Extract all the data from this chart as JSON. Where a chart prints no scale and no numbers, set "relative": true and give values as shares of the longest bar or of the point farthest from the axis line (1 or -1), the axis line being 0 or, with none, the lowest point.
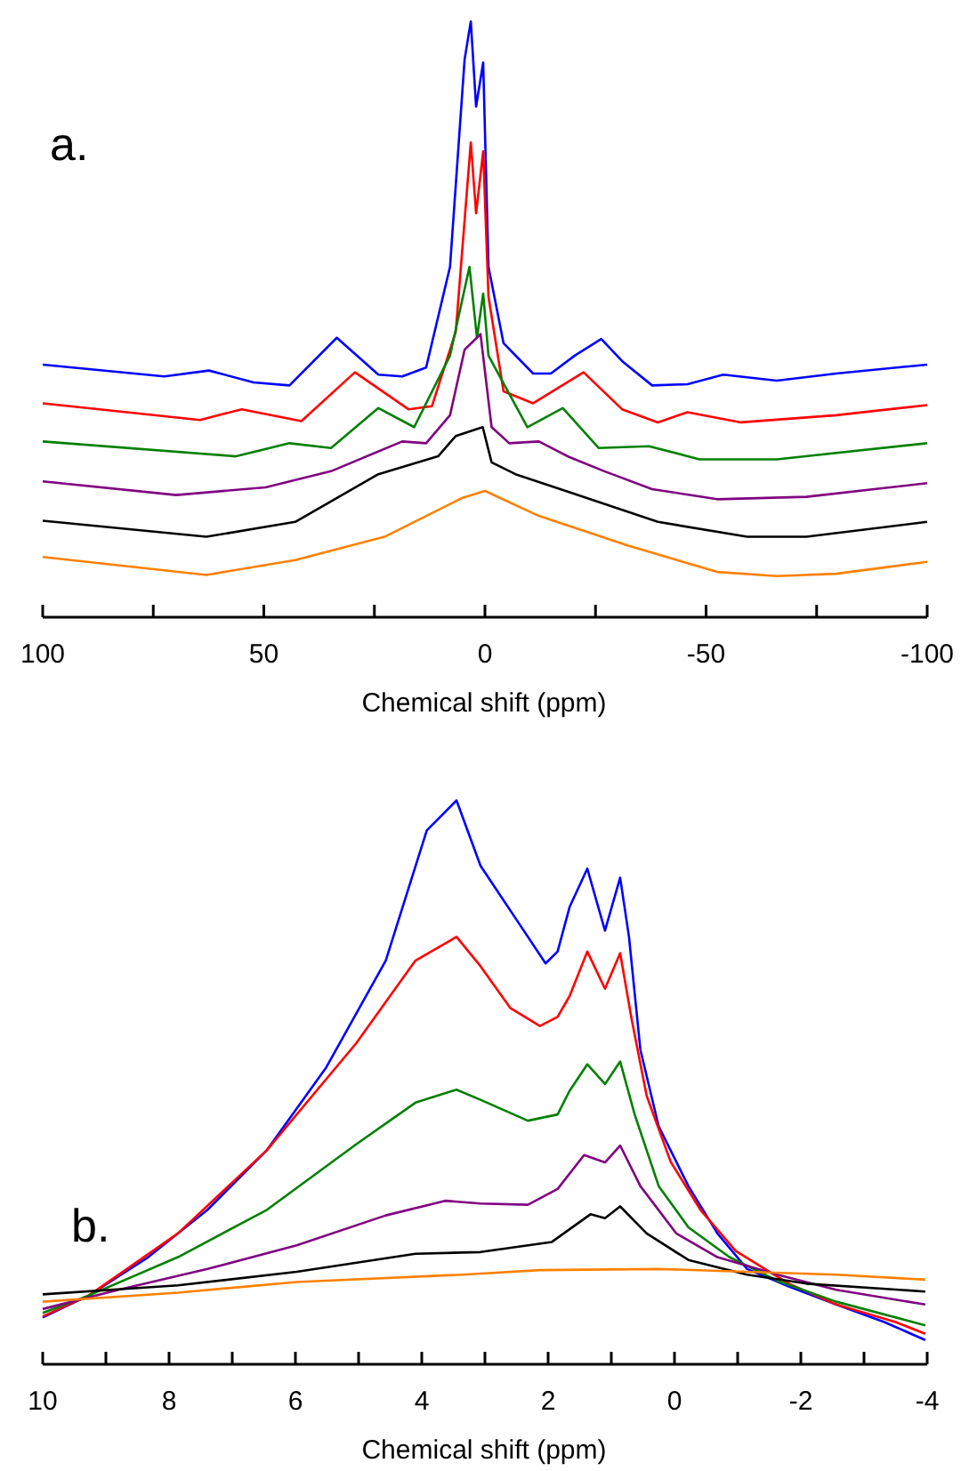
{
  "chart_data": [
    {
      "type": "line",
      "relative": true,
      "xlabel": "Chemical shift (ppm)",
      "annotations": [
        "a."
      ],
      "xlim": [
        100,
        -100
      ],
      "xticks": [
        100,
        {
          "value": 75,
          "label": null
        },
        50,
        {
          "value": 25,
          "label": null
        },
        0,
        {
          "value": -25,
          "label": null
        },
        -50,
        {
          "value": -75,
          "label": null
        },
        -100
      ],
      "tick_labels": "x",
      "series": [
        {
          "color": "#0000ff",
          "x": [
            100,
            72.5,
            62.4,
            52.3,
            44.2,
            33.5,
            24.1,
            18.7,
            13.3,
            7.9,
            4.6,
            3.2,
            2.0,
            0.4,
            -0.8,
            -4.2,
            -10.9,
            -14.9,
            -20.3,
            -26.3,
            -31.0,
            -37.8,
            -45.8,
            -53.9,
            -66.0,
            -79.4,
            -100
          ],
          "values": [
            0.424,
            0.404,
            0.414,
            0.394,
            0.389,
            0.469,
            0.407,
            0.404,
            0.419,
            0.588,
            0.936,
            1.0,
            0.857,
            0.931,
            0.588,
            0.46,
            0.409,
            0.409,
            0.439,
            0.467,
            0.43,
            0.389,
            0.391,
            0.407,
            0.397,
            0.409,
            0.424
          ]
        },
        {
          "color": "#ff0000",
          "x": [
            100,
            64.4,
            55.0,
            41.5,
            29.4,
            17.3,
            12.0,
            6.6,
            3.2,
            2.0,
            0.4,
            -0.8,
            -4.2,
            -10.9,
            -22.3,
            -31.0,
            -39.1,
            -45.8,
            -57.9,
            -79.4,
            -100
          ],
          "values": [
            0.359,
            0.331,
            0.349,
            0.329,
            0.411,
            0.349,
            0.354,
            0.479,
            0.797,
            0.678,
            0.782,
            0.538,
            0.379,
            0.359,
            0.411,
            0.349,
            0.327,
            0.344,
            0.327,
            0.339,
            0.356
          ]
        },
        {
          "color": "#008000",
          "x": [
            100,
            56.3,
            44.2,
            34.8,
            24.1,
            16.0,
            7.9,
            3.5,
            1.8,
            0.4,
            -0.8,
            -9.6,
            -17.6,
            -25.7,
            -37.1,
            -48.5,
            -66.0,
            -100
          ],
          "values": [
            0.295,
            0.27,
            0.292,
            0.284,
            0.351,
            0.319,
            0.439,
            0.588,
            0.469,
            0.543,
            0.439,
            0.319,
            0.351,
            0.284,
            0.287,
            0.265,
            0.265,
            0.292
          ]
        },
        {
          "color": "#800080",
          "x": [
            100,
            69.8,
            49.6,
            34.8,
            18.7,
            13.3,
            7.9,
            4.6,
            1.0,
            -1.5,
            -5.5,
            -12.2,
            -19.0,
            -27.0,
            -37.8,
            -52.5,
            -72.7,
            -100
          ],
          "values": [
            0.228,
            0.205,
            0.218,
            0.245,
            0.295,
            0.292,
            0.339,
            0.449,
            0.475,
            0.319,
            0.292,
            0.295,
            0.269,
            0.245,
            0.215,
            0.198,
            0.202,
            0.225
          ]
        },
        {
          "color": "#000000",
          "x": [
            100,
            63.0,
            42.9,
            24.1,
            10.6,
            6.6,
            0.5,
            -1.5,
            -6.9,
            -19.0,
            -39.1,
            -59.3,
            -72.7,
            -100
          ],
          "values": [
            0.162,
            0.135,
            0.16,
            0.24,
            0.27,
            0.304,
            0.319,
            0.26,
            0.24,
            0.21,
            0.16,
            0.135,
            0.135,
            0.16
          ]
        },
        {
          "color": "#ff8000",
          "x": [
            100,
            63.0,
            42.9,
            22.7,
            5.2,
            0,
            -12.2,
            -32.4,
            -52.5,
            -66.0,
            -79.4,
            -100
          ],
          "values": [
            0.101,
            0.071,
            0.096,
            0.135,
            0.2,
            0.212,
            0.17,
            0.12,
            0.076,
            0.069,
            0.073,
            0.093
          ]
        }
      ]
    },
    {
      "type": "line",
      "relative": true,
      "xlabel": "Chemical shift (ppm)",
      "annotations": [
        "b."
      ],
      "xlim": [
        10,
        -4
      ],
      "xticks": [
        10,
        {
          "value": 9,
          "label": null
        },
        8,
        {
          "value": 7,
          "label": null
        },
        6,
        {
          "value": 5,
          "label": null
        },
        4,
        {
          "value": 3,
          "label": null
        },
        2,
        {
          "value": 1,
          "label": null
        },
        0,
        {
          "value": -1,
          "label": null
        },
        -2,
        {
          "value": -3,
          "label": null
        },
        -4
      ],
      "tick_labels": "x",
      "series": [
        {
          "color": "#0000ff",
          "x": [
            10,
            9.27,
            8.33,
            7.39,
            6.45,
            5.51,
            4.57,
            3.92,
            3.45,
            3.07,
            2.51,
            2.04,
            1.85,
            1.66,
            1.38,
            1.1,
            0.86,
            0.72,
            0.54,
            0.25,
            -0.22,
            -0.68,
            -1.15,
            -1.81,
            -2.56,
            -3.32,
            -3.97
          ],
          "values": [
            0.083,
            0.122,
            0.19,
            0.274,
            0.38,
            0.527,
            0.716,
            0.947,
            1.0,
            0.884,
            0.79,
            0.711,
            0.732,
            0.811,
            0.879,
            0.769,
            0.863,
            0.758,
            0.558,
            0.422,
            0.316,
            0.232,
            0.169,
            0.138,
            0.106,
            0.075,
            0.043
          ]
        },
        {
          "color": "#ff0000",
          "x": [
            10,
            9.27,
            7.86,
            6.45,
            5.04,
            4.1,
            3.45,
            3.07,
            2.6,
            2.13,
            1.85,
            1.66,
            1.38,
            1.1,
            0.86,
            0.68,
            0.44,
            0.06,
            -0.41,
            -0.97,
            -1.81,
            -2.56,
            -3.5,
            -3.97
          ],
          "values": [
            0.085,
            0.122,
            0.232,
            0.38,
            0.569,
            0.716,
            0.758,
            0.706,
            0.632,
            0.6,
            0.616,
            0.653,
            0.732,
            0.666,
            0.729,
            0.613,
            0.476,
            0.359,
            0.274,
            0.201,
            0.143,
            0.106,
            0.075,
            0.054
          ]
        },
        {
          "color": "#008000",
          "x": [
            10,
            9.27,
            7.86,
            6.45,
            5.04,
            4.1,
            3.45,
            3.07,
            2.32,
            1.85,
            1.66,
            1.38,
            1.1,
            0.86,
            0.63,
            0.25,
            -0.22,
            -0.87,
            -1.63,
            -2.56,
            -3.97
          ],
          "values": [
            0.091,
            0.122,
            0.19,
            0.274,
            0.39,
            0.464,
            0.487,
            0.469,
            0.432,
            0.443,
            0.485,
            0.532,
            0.497,
            0.537,
            0.443,
            0.316,
            0.243,
            0.19,
            0.148,
            0.111,
            0.069
          ]
        },
        {
          "color": "#800080",
          "x": [
            10,
            8.8,
            7.39,
            5.98,
            4.57,
            3.63,
            3.07,
            2.32,
            1.85,
            1.43,
            1.1,
            0.86,
            0.54,
            -0.03,
            -0.68,
            -1.63,
            -2.56,
            -3.97
          ],
          "values": [
            0.098,
            0.132,
            0.169,
            0.211,
            0.264,
            0.29,
            0.285,
            0.283,
            0.311,
            0.371,
            0.358,
            0.388,
            0.316,
            0.232,
            0.19,
            0.159,
            0.132,
            0.106
          ]
        },
        {
          "color": "#000000",
          "x": [
            10,
            7.86,
            5.98,
            4.1,
            3.07,
            1.94,
            1.33,
            1.1,
            0.86,
            0.44,
            -0.22,
            -1.15,
            -2.09,
            -3.97
          ],
          "values": [
            0.124,
            0.14,
            0.164,
            0.196,
            0.199,
            0.217,
            0.266,
            0.259,
            0.28,
            0.232,
            0.185,
            0.159,
            0.143,
            0.129
          ]
        },
        {
          "color": "#ff8000",
          "x": [
            10,
            7.86,
            5.98,
            3.35,
            2.13,
            0.25,
            -1.15,
            -2.56,
            -3.97
          ],
          "values": [
            0.111,
            0.127,
            0.146,
            0.159,
            0.167,
            0.169,
            0.164,
            0.159,
            0.15
          ]
        }
      ]
    }
  ]
}
